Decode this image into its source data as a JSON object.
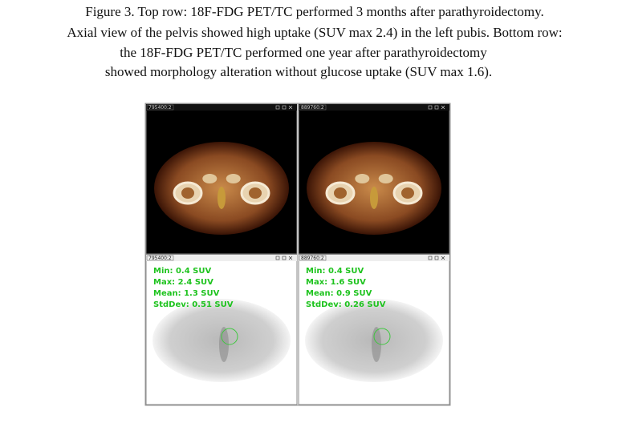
{
  "caption": {
    "lines": [
      "Figure 3. Top row: 18F-FDG PET/TC performed 3 months after parathyroidectomy.",
      "Axial view of the pelvis showed high uptake (SUV max 2.4) in the left pubis. Bottom row:",
      "the 18F-FDG PET/TC performed one year after parathyroidectomy",
      "showed morphology alteration without glucose uptake (SUV max 1.6)."
    ]
  },
  "panels": [
    {
      "label": "795400:2",
      "kind": "fused"
    },
    {
      "label": "889760:2",
      "kind": "fused"
    },
    {
      "label": "795400:2",
      "kind": "pet",
      "stats": [
        "Min: 0.4 SUV",
        "Max: 2.4 SUV",
        "Mean: 1.3 SUV",
        "StdDev: 0.51 SUV"
      ]
    },
    {
      "label": "889760:2",
      "kind": "pet",
      "stats": [
        "Min: 0.4 SUV",
        "Max: 1.6 SUV",
        "Mean: 0.9 SUV",
        "StdDev: 0.26 SUV"
      ]
    }
  ]
}
